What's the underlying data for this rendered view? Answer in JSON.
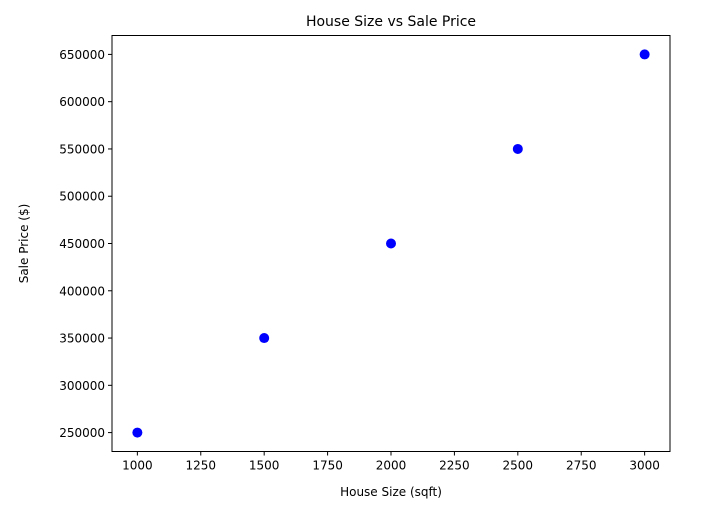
{
  "chart_data": {
    "type": "scatter",
    "title": "House Size vs Sale Price",
    "xlabel": "House Size (sqft)",
    "ylabel": "Sale Price ($)",
    "x": [
      1000,
      1500,
      2000,
      2500,
      3000
    ],
    "y": [
      250000,
      350000,
      450000,
      550000,
      650000
    ],
    "xlim": [
      900,
      3100
    ],
    "ylim": [
      230000,
      670000
    ],
    "xticks": [
      1000,
      1250,
      1500,
      1750,
      2000,
      2250,
      2500,
      2750,
      3000
    ],
    "yticks": [
      250000,
      300000,
      350000,
      400000,
      450000,
      500000,
      550000,
      600000,
      650000
    ],
    "grid": false,
    "marker_color": "#0000ff"
  }
}
